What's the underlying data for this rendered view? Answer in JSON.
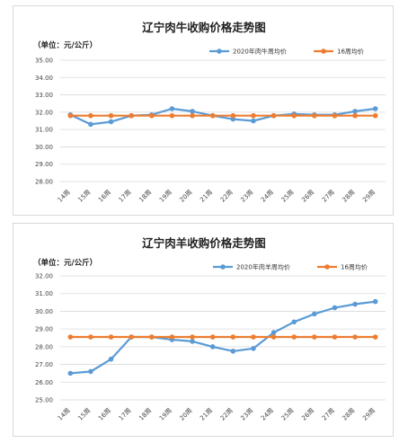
{
  "chart_data": [
    {
      "type": "line",
      "title": "辽宁肉牛收购价格走势图",
      "unit_label": "（单位：元/公斤）",
      "categories": [
        "14周",
        "15周",
        "16周",
        "17周",
        "18周",
        "19周",
        "20周",
        "21周",
        "22周",
        "23周",
        "24周",
        "25周",
        "26周",
        "27周",
        "28周",
        "29周"
      ],
      "yticks": [
        "35.00",
        "34.00",
        "33.00",
        "32.00",
        "31.00",
        "30.00",
        "29.00",
        "28.00"
      ],
      "ylim": [
        28,
        35
      ],
      "grid": true,
      "legend_position": "top-right",
      "series": [
        {
          "name": "2020年肉牛周均价",
          "color": "#5b9bd5",
          "values": [
            31.85,
            31.3,
            31.45,
            31.8,
            31.85,
            32.2,
            32.05,
            31.8,
            31.6,
            31.5,
            31.8,
            31.9,
            31.85,
            31.85,
            32.05,
            32.2
          ]
        },
        {
          "name": "16周均价",
          "color": "#ed7d31",
          "values": [
            31.8,
            31.8,
            31.8,
            31.8,
            31.8,
            31.8,
            31.8,
            31.8,
            31.8,
            31.8,
            31.8,
            31.8,
            31.8,
            31.8,
            31.8,
            31.8
          ]
        }
      ]
    },
    {
      "type": "line",
      "title": "辽宁肉羊收购价格走势图",
      "unit_label": "（单位：元/公斤）",
      "categories": [
        "14周",
        "15周",
        "16周",
        "17周",
        "18周",
        "19周",
        "20周",
        "21周",
        "22周",
        "23周",
        "24周",
        "25周",
        "26周",
        "27周",
        "28周",
        "29周"
      ],
      "yticks": [
        "32.00",
        "31.00",
        "30.00",
        "29.00",
        "28.00",
        "27.00",
        "26.00",
        "25.00"
      ],
      "ylim": [
        25,
        32
      ],
      "grid": true,
      "legend_position": "top-right",
      "series": [
        {
          "name": "2020年肉羊周均价",
          "color": "#5b9bd5",
          "values": [
            26.5,
            26.6,
            27.3,
            28.55,
            28.55,
            28.4,
            28.3,
            28.0,
            27.75,
            27.9,
            28.8,
            29.4,
            29.85,
            30.2,
            30.4,
            30.55
          ]
        },
        {
          "name": "16周均价",
          "color": "#ed7d31",
          "values": [
            28.55,
            28.55,
            28.55,
            28.55,
            28.55,
            28.55,
            28.55,
            28.55,
            28.55,
            28.55,
            28.55,
            28.55,
            28.55,
            28.55,
            28.55,
            28.55
          ]
        }
      ]
    }
  ]
}
